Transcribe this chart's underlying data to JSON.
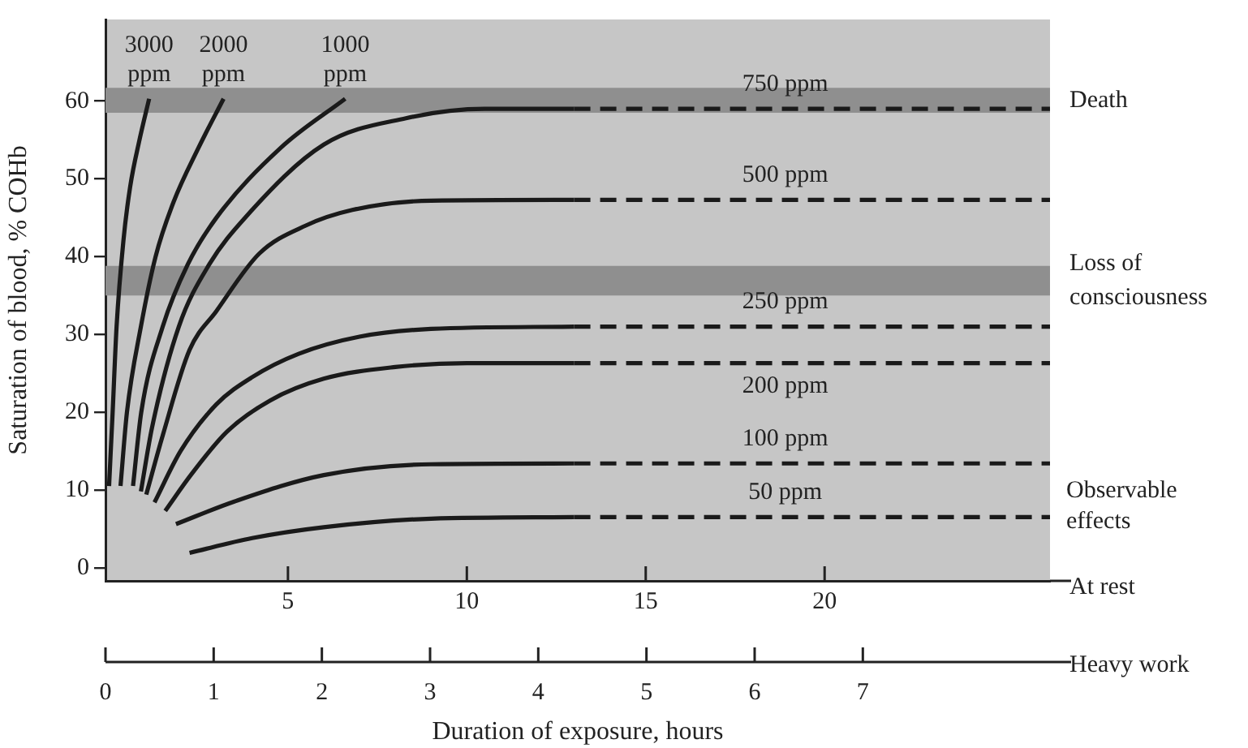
{
  "chart_data": {
    "type": "line",
    "ylabel": "Saturation of blood, % COHb",
    "xlabel": "Duration of exposure, hours",
    "marker": "none",
    "xlim": [
      -0.1,
      26.3
    ],
    "xticks": [
      5,
      10,
      15,
      20
    ],
    "x2lim": [
      0,
      8.73
    ],
    "x2ticks": [
      0,
      1,
      2,
      3,
      4,
      5,
      6,
      7
    ],
    "ylim": [
      -1.7,
      70.5
    ],
    "yticks": [
      0,
      10,
      20,
      30,
      40,
      50,
      60
    ],
    "series": [
      {
        "color": "#1a1a1a",
        "line_style": "solid",
        "x": [
          0,
          0.1,
          0.21,
          0.4,
          0.59,
          0.85,
          1.12
        ],
        "values": [
          10.5,
          20,
          31,
          42,
          49,
          55,
          60.3
        ]
      },
      {
        "color": "#1a1a1a",
        "line_style": "solid",
        "x": [
          0.32,
          0.5,
          0.89,
          1.3,
          1.8,
          2.5,
          3.2
        ],
        "values": [
          10.5,
          20,
          31,
          40,
          47,
          54,
          60.3
        ]
      },
      {
        "color": "#1a1a1a",
        "line_style": "solid",
        "x": [
          0.67,
          0.9,
          1.5,
          2.2,
          3.0,
          4.8,
          6.6
        ],
        "values": [
          10.5,
          20,
          31,
          39,
          45,
          54,
          60.3
        ]
      },
      {
        "color": "#1a1a1a",
        "line_style": "solid",
        "x": [
          0.89,
          1.2,
          1.95,
          2.8,
          3.8,
          6,
          8.3,
          10.5,
          13
        ],
        "values": [
          9.8,
          18,
          31,
          39,
          45,
          54.4,
          57.8,
          59,
          59
        ]
      },
      {
        "color": "#1a1a1a",
        "line_style": "dashed",
        "x": [
          13,
          26.3
        ],
        "values": [
          59,
          59
        ]
      },
      {
        "color": "#1a1a1a",
        "line_style": "solid",
        "x": [
          1.04,
          1.5,
          2.25,
          3,
          4.2,
          5.5,
          6.8,
          9,
          13
        ],
        "values": [
          9.4,
          17,
          28,
          33,
          40.4,
          44,
          46,
          47.2,
          47.3
        ]
      },
      {
        "color": "#1a1a1a",
        "line_style": "dashed",
        "x": [
          13,
          26.3
        ],
        "values": [
          47.3,
          47.3
        ]
      },
      {
        "color": "#1a1a1a",
        "line_style": "solid",
        "x": [
          1.27,
          2,
          3,
          4,
          5.3,
          7,
          9,
          13
        ],
        "values": [
          8.4,
          15,
          21,
          24.5,
          27.5,
          29.7,
          30.7,
          31
        ]
      },
      {
        "color": "#1a1a1a",
        "line_style": "dashed",
        "x": [
          13,
          26.3
        ],
        "values": [
          31,
          31
        ]
      },
      {
        "color": "#1a1a1a",
        "line_style": "solid",
        "x": [
          1.57,
          2.3,
          3.3,
          4.5,
          6,
          8,
          10,
          13
        ],
        "values": [
          7.3,
          12,
          17.5,
          21.5,
          24.3,
          25.8,
          26.3,
          26.3
        ]
      },
      {
        "color": "#1a1a1a",
        "line_style": "dashed",
        "x": [
          13,
          26.3
        ],
        "values": [
          26.3,
          26.3
        ]
      },
      {
        "color": "#1a1a1a",
        "line_style": "solid",
        "x": [
          1.87,
          3.5,
          6,
          9,
          13
        ],
        "values": [
          5.6,
          8.5,
          11.9,
          13.3,
          13.4
        ]
      },
      {
        "color": "#1a1a1a",
        "line_style": "dashed",
        "x": [
          13,
          26.3
        ],
        "values": [
          13.4,
          13.4
        ]
      },
      {
        "color": "#1a1a1a",
        "line_style": "solid",
        "x": [
          2.25,
          4,
          6,
          9,
          13
        ],
        "values": [
          1.9,
          3.8,
          5.2,
          6.3,
          6.5
        ]
      },
      {
        "color": "#1a1a1a",
        "line_style": "dashed",
        "x": [
          13,
          26.3
        ],
        "values": [
          6.5,
          6.5
        ]
      }
    ],
    "bands": [
      {
        "axis": "y",
        "from": 58.5,
        "to": 61.7,
        "label": "Death",
        "color": "#8f8f8f"
      },
      {
        "axis": "y",
        "from": 35,
        "to": 38.8,
        "label": "Loss of consciousness",
        "color": "#8f8f8f"
      }
    ],
    "annotations": [
      "At rest",
      "Heavy work",
      "Observable effects",
      {
        "text": "3000 ppm",
        "x": 1.12,
        "y": 60.3
      },
      {
        "text": "2000 ppm",
        "x": 3.2,
        "y": 60.3
      },
      {
        "text": "1000 ppm",
        "x": 6.6,
        "y": 60.3
      },
      {
        "text": "750 ppm",
        "x": 18.9,
        "y": 59
      },
      {
        "text": "500 ppm",
        "x": 18.9,
        "y": 47.3
      },
      {
        "text": "250 ppm",
        "x": 18.9,
        "y": 31
      },
      {
        "text": "200 ppm",
        "x": 18.9,
        "y": 26.3
      },
      {
        "text": "100 ppm",
        "x": 18.9,
        "y": 13.4
      },
      {
        "text": "50 ppm",
        "x": 18.9,
        "y": 6.5
      }
    ]
  }
}
